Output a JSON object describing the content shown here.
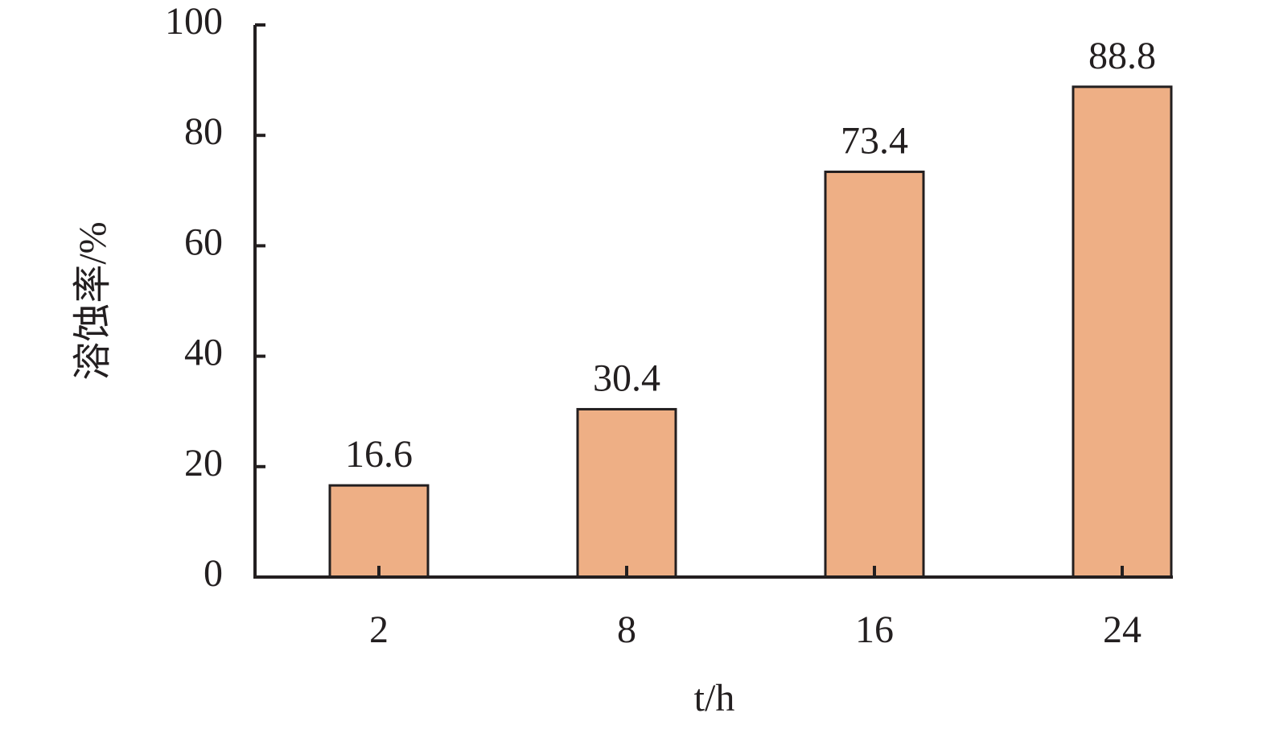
{
  "chart_data": {
    "type": "bar",
    "x_label": "t/h",
    "y_label": "溶蚀率/%",
    "categories": [
      "2",
      "8",
      "16",
      "24"
    ],
    "values": [
      16.6,
      30.4,
      73.4,
      88.8
    ],
    "color": "#eeaf85",
    "ylim": [
      0,
      100
    ],
    "yticks": [
      0,
      20,
      40,
      60,
      80,
      100
    ]
  }
}
